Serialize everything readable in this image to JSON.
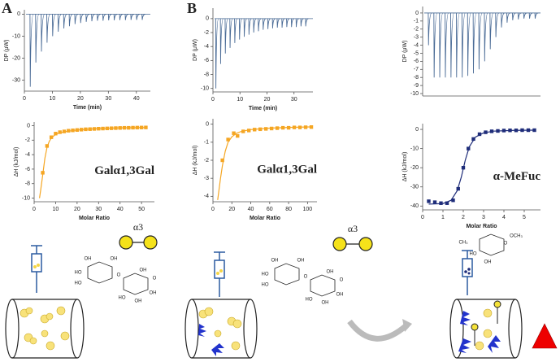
{
  "chart_data": [
    {
      "type": "trace",
      "ylabel": "DP (μW)",
      "xlabel": "Time (min)",
      "color": "#4a6b96",
      "xlim": [
        0,
        45
      ],
      "ylim": [
        -35,
        2
      ],
      "xticks": [
        0,
        10,
        20,
        30,
        40
      ],
      "yticks": [
        0,
        -10,
        -20,
        -30
      ],
      "x": [
        2,
        4,
        6,
        8,
        10,
        12,
        14,
        16,
        18,
        20,
        22,
        24,
        26,
        28,
        30,
        32,
        34,
        36,
        38,
        40,
        42
      ],
      "values": [
        -33,
        -22,
        -17,
        -13,
        -10,
        -8,
        -6.5,
        -5.5,
        -4.5,
        -4,
        -3.5,
        -3.2,
        -3,
        -3,
        -2.8,
        -2.8,
        -2.7,
        -2.7,
        -2.6,
        -2.6,
        -2.6
      ]
    },
    {
      "type": "scatter",
      "ylabel": "ΔH (kJ/mol)",
      "xlabel": "Molar Ratio",
      "color": "#f5a623",
      "annotation": "Galα1,3Gal",
      "xlim": [
        0,
        56
      ],
      "ylim": [
        -10.5,
        0.5
      ],
      "xticks": [
        0,
        10,
        20,
        30,
        40,
        50
      ],
      "yticks": [
        0,
        -2,
        -4,
        -6,
        -8,
        -10
      ],
      "x": [
        4,
        6,
        8,
        10,
        12,
        14,
        16,
        18,
        20,
        22,
        24,
        26,
        28,
        30,
        32,
        34,
        36,
        38,
        40,
        42,
        44,
        46,
        48,
        50,
        52
      ],
      "values": [
        -6.5,
        -2.8,
        -1.6,
        -1.1,
        -0.9,
        -0.8,
        -0.7,
        -0.65,
        -0.6,
        -0.55,
        -0.5,
        -0.48,
        -0.45,
        -0.42,
        -0.4,
        -0.38,
        -0.36,
        -0.34,
        -0.32,
        -0.3,
        -0.3,
        -0.28,
        -0.27,
        -0.26,
        -0.25
      ],
      "fit": {
        "x": [
          2.5,
          3,
          4,
          5,
          6,
          7,
          8,
          10,
          12,
          15,
          20,
          30,
          40,
          52
        ],
        "values": [
          -10,
          -9,
          -6.8,
          -4.5,
          -3,
          -2.2,
          -1.7,
          -1.2,
          -1,
          -0.8,
          -0.6,
          -0.4,
          -0.3,
          -0.25
        ]
      }
    },
    {
      "type": "trace",
      "ylabel": "DP (μW)",
      "xlabel": "Time (min)",
      "color": "#4a6b96",
      "xlim": [
        0,
        37
      ],
      "ylim": [
        -10.5,
        1.5
      ],
      "xticks": [
        0,
        10,
        20,
        30
      ],
      "yticks": [
        0,
        -2,
        -4,
        -6,
        -8,
        -10
      ],
      "x": [
        1,
        2.75,
        4.5,
        6.25,
        8,
        9.75,
        11.5,
        13.25,
        15,
        16.75,
        18.5,
        20.25,
        22,
        23.75,
        25.5,
        27.25,
        29,
        30.75,
        32.5,
        34.25
      ],
      "values": [
        -10,
        -6.5,
        -5,
        -4.2,
        -3.5,
        -3,
        -2.6,
        -2.3,
        -2,
        -1.8,
        -1.6,
        -1.5,
        -1.4,
        -1.3,
        -1.3,
        -1.2,
        -1.2,
        -1.2,
        -1.1,
        -1.1
      ]
    },
    {
      "type": "scatter",
      "ylabel": "ΔH (kJ/mol)",
      "xlabel": "Molar Ratio",
      "color": "#f5a623",
      "annotation": "Galα1,3Gal",
      "xlim": [
        0,
        110
      ],
      "ylim": [
        -4.3,
        0.3
      ],
      "xticks": [
        0,
        20,
        40,
        60,
        80,
        100
      ],
      "yticks": [
        0,
        -1,
        -2,
        -3,
        -4
      ],
      "x": [
        10,
        16,
        22,
        26,
        32,
        38,
        44,
        50,
        56,
        62,
        68,
        74,
        80,
        86,
        92,
        98,
        104
      ],
      "values": [
        -2.0,
        -0.85,
        -0.5,
        -0.65,
        -0.4,
        -0.35,
        -0.3,
        -0.28,
        -0.26,
        -0.24,
        -0.22,
        -0.2,
        -0.2,
        -0.18,
        -0.18,
        -0.17,
        -0.16
      ],
      "fit": {
        "x": [
          5,
          8,
          10,
          13,
          16,
          20,
          25,
          30,
          40,
          60,
          80,
          105
        ],
        "values": [
          -4.2,
          -3,
          -2.3,
          -1.5,
          -1,
          -0.7,
          -0.5,
          -0.4,
          -0.3,
          -0.22,
          -0.18,
          -0.15
        ]
      }
    },
    {
      "type": "trace",
      "ylabel": "DP (μW)",
      "color": "#4a6b96",
      "xlim": [
        0,
        42
      ],
      "ylim": [
        -10.3,
        0.8
      ],
      "yticks": [
        0,
        -1,
        -2,
        -3,
        -4,
        -5,
        -6,
        -7,
        -8,
        -9,
        -10
      ],
      "x": [
        2,
        4,
        6,
        8,
        10,
        12,
        14,
        16,
        18,
        20,
        22,
        24,
        26,
        28,
        30,
        32,
        34,
        36,
        38,
        40
      ],
      "values": [
        -4,
        -8,
        -8,
        -8,
        -8,
        -8,
        -8,
        -7.8,
        -7.5,
        -7,
        -6,
        -4.5,
        -3,
        -1.8,
        -1.2,
        -0.9,
        -0.8,
        -0.7,
        -0.7,
        -0.7
      ]
    },
    {
      "type": "scatter",
      "ylabel": "ΔH (kJ/mol)",
      "xlabel": "Molar Ratio",
      "color": "#1f2d7a",
      "annotation": "α-MeFuc",
      "xlim": [
        0,
        5.8
      ],
      "ylim": [
        -42,
        3
      ],
      "xticks": [
        0,
        1,
        2,
        3,
        4,
        5
      ],
      "yticks": [
        0,
        -10,
        -20,
        -30,
        -40
      ],
      "x": [
        0.3,
        0.6,
        0.9,
        1.2,
        1.5,
        1.75,
        2.0,
        2.25,
        2.5,
        2.8,
        3.1,
        3.4,
        3.7,
        4.0,
        4.3,
        4.6,
        4.9,
        5.2,
        5.5
      ],
      "values": [
        -37.5,
        -38,
        -38.5,
        -38.5,
        -37,
        -31,
        -20,
        -10,
        -5,
        -2.5,
        -1.5,
        -1,
        -0.8,
        -0.6,
        -0.5,
        -0.5,
        -0.4,
        -0.4,
        -0.4
      ],
      "fit": {
        "x": [
          0.3,
          1,
          1.4,
          1.7,
          1.9,
          2.1,
          2.3,
          2.6,
          3,
          3.5,
          4.5,
          5.5
        ],
        "values": [
          -39,
          -38.7,
          -37,
          -32,
          -25,
          -16,
          -9,
          -4,
          -1.8,
          -0.9,
          -0.5,
          -0.4
        ]
      }
    }
  ],
  "diagram": {
    "panel_labels": [
      "A",
      "B"
    ],
    "linkage": [
      "α3",
      "α3"
    ],
    "chem_a": [
      "OH",
      "OH",
      "HO",
      "HO",
      "O",
      "OH",
      "HO",
      "O",
      "OH",
      "OH"
    ],
    "chem_b": [
      "OH",
      "OH",
      "HO",
      "HO",
      "O",
      "OH",
      "HO",
      "O",
      "OH",
      "OH"
    ],
    "chem_c": [
      "CH₃",
      "OCH₃",
      "OH",
      "HO",
      "O"
    ]
  }
}
